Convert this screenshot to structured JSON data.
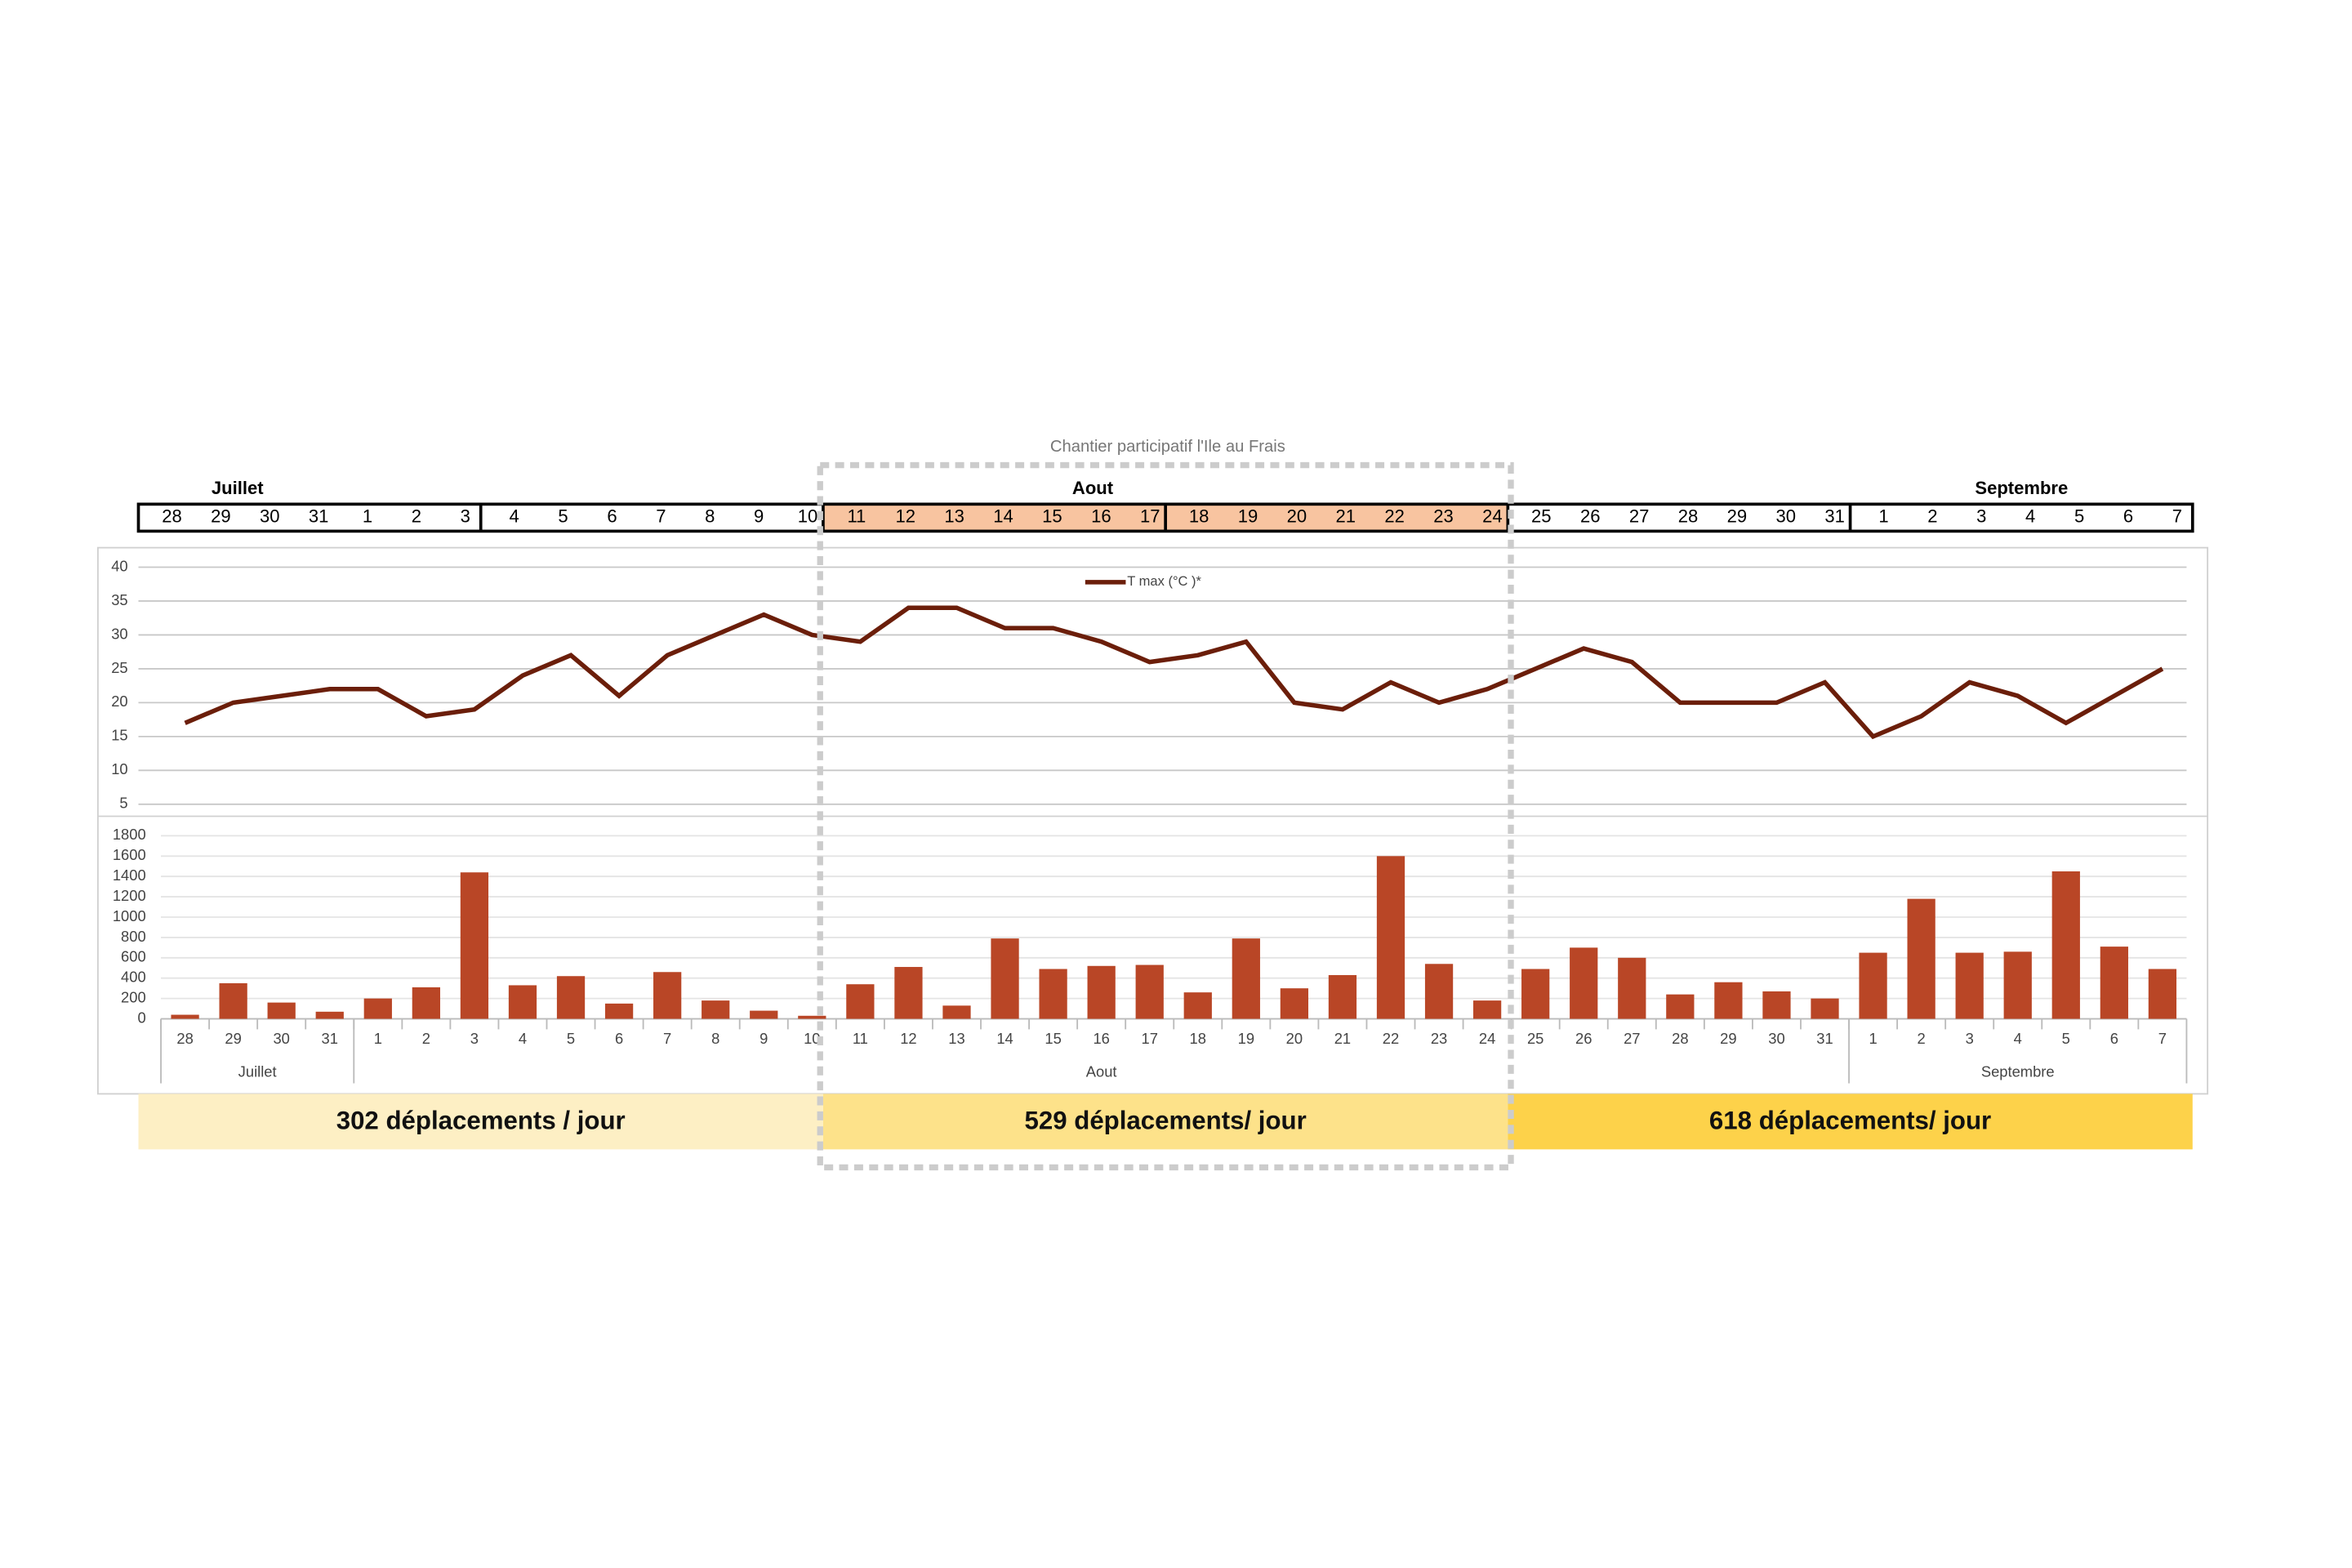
{
  "title": "Chantier participatif l'Ile au Frais",
  "header": {
    "months": [
      "Juillet",
      "Aout",
      "Septembre"
    ]
  },
  "chart_data": [
    {
      "type": "line",
      "legend": "T max (°C )*",
      "categories": [
        "28",
        "29",
        "30",
        "31",
        "1",
        "2",
        "3",
        "4",
        "5",
        "6",
        "7",
        "8",
        "9",
        "10",
        "11",
        "12",
        "13",
        "14",
        "15",
        "16",
        "17",
        "18",
        "19",
        "20",
        "21",
        "22",
        "23",
        "24",
        "25",
        "26",
        "27",
        "28",
        "29",
        "30",
        "31",
        "1",
        "2",
        "3",
        "4",
        "5",
        "6",
        "7"
      ],
      "series": [
        {
          "name": "T max (°C )*",
          "color": "#6b1e0a",
          "values": [
            17,
            20,
            21,
            22,
            22,
            18,
            19,
            24,
            27,
            21,
            27,
            30,
            33,
            30,
            29,
            34,
            34,
            31,
            31,
            29,
            26,
            27,
            29,
            20,
            19,
            23,
            20,
            22,
            25,
            28,
            26,
            20,
            20,
            20,
            23,
            15,
            18,
            23,
            21,
            17,
            21,
            25
          ]
        }
      ],
      "ylim": [
        5,
        40
      ],
      "yticks": [
        5,
        10,
        15,
        20,
        25,
        30,
        35,
        40
      ],
      "grid": true
    },
    {
      "type": "bar",
      "categories": [
        "28",
        "29",
        "30",
        "31",
        "1",
        "2",
        "3",
        "4",
        "5",
        "6",
        "7",
        "8",
        "9",
        "10",
        "11",
        "12",
        "13",
        "14",
        "15",
        "16",
        "17",
        "18",
        "19",
        "20",
        "21",
        "22",
        "23",
        "24",
        "25",
        "26",
        "27",
        "28",
        "29",
        "30",
        "31",
        "1",
        "2",
        "3",
        "4",
        "5",
        "6",
        "7"
      ],
      "month_groups": [
        "Juillet",
        "Aout",
        "Septembre"
      ],
      "values": [
        40,
        350,
        160,
        70,
        200,
        310,
        1440,
        330,
        420,
        150,
        460,
        180,
        80,
        30,
        340,
        510,
        130,
        790,
        490,
        520,
        530,
        260,
        790,
        300,
        430,
        1600,
        540,
        180,
        490,
        700,
        600,
        240,
        360,
        270,
        200,
        650,
        1180,
        650,
        660,
        1450,
        710,
        490
      ],
      "color": "#b94626",
      "ylim": [
        0,
        1800
      ],
      "yticks": [
        0,
        200,
        400,
        600,
        800,
        1000,
        1200,
        1400,
        1600,
        1800
      ],
      "grid": true
    }
  ],
  "periods": [
    {
      "label": "302 déplacements / jour",
      "color": "#fdefc4"
    },
    {
      "label": "529 déplacements/ jour",
      "color": "#fde28a"
    },
    {
      "label": "618 déplacements/ jour",
      "color": "#fdd24a"
    }
  ]
}
